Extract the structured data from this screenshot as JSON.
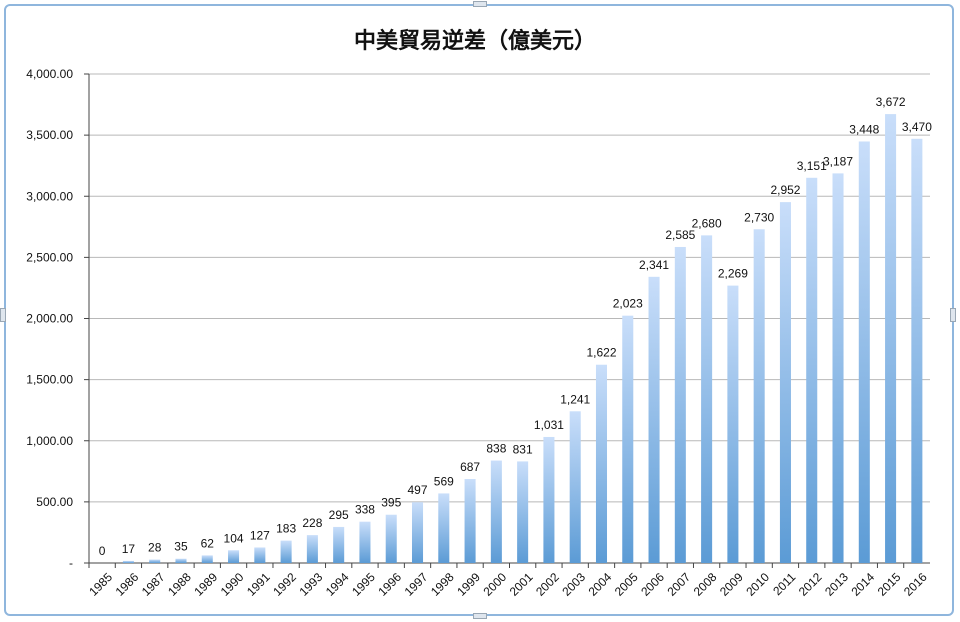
{
  "chart_data": {
    "type": "bar",
    "title": "中美貿易逆差（億美元）",
    "xlabel": "",
    "ylabel": "",
    "ylim": [
      0,
      4000
    ],
    "y_ticks": [
      "-",
      "500.00",
      "1,000.00",
      "1,500.00",
      "2,000.00",
      "2,500.00",
      "3,000.00",
      "3,500.00",
      "4,000.00"
    ],
    "grid": true,
    "legend": "none",
    "categories": [
      "1985",
      "1986",
      "1987",
      "1988",
      "1989",
      "1990",
      "1991",
      "1992",
      "1993",
      "1994",
      "1995",
      "1996",
      "1997",
      "1998",
      "1999",
      "2000",
      "2001",
      "2002",
      "2003",
      "2004",
      "2005",
      "2006",
      "2007",
      "2008",
      "2009",
      "2010",
      "2011",
      "2012",
      "2013",
      "2014",
      "2015",
      "2016"
    ],
    "values": [
      0,
      17,
      28,
      35,
      62,
      104,
      127,
      183,
      228,
      295,
      338,
      395,
      497,
      569,
      687,
      838,
      831,
      1031,
      1241,
      1622,
      2023,
      2341,
      2585,
      2680,
      2269,
      2730,
      2952,
      3151,
      3187,
      3448,
      3672,
      3470
    ],
    "data_labels": [
      "0",
      "17",
      "28",
      "35",
      "62",
      "104",
      "127",
      "183",
      "228",
      "295",
      "338",
      "395",
      "497",
      "569",
      "687",
      "838",
      "831",
      "1,031",
      "1,241",
      "1,622",
      "2,023",
      "2,341",
      "2,585",
      "2,680",
      "2,269",
      "2,730",
      "2,952",
      "3,151",
      "3,187",
      "3,448",
      "3,672",
      "3,470"
    ],
    "colors": {
      "bar_top": "#c9defa",
      "bar_bottom": "#5b9bd5",
      "grid": "#b8b8b8",
      "frame": "#8fb6dd"
    }
  }
}
